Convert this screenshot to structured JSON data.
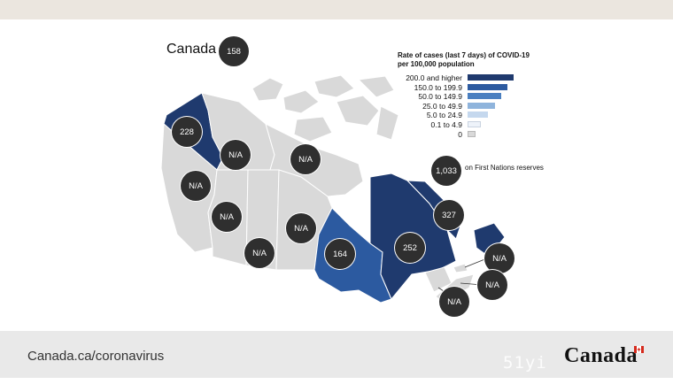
{
  "header": {
    "bar": ""
  },
  "map": {
    "title": "Canada",
    "national_value": "158",
    "first_nations_value": "1,033",
    "first_nations_label": "on First Nations reserves",
    "regions": [
      {
        "name": "Yukon",
        "value": "228",
        "fill": "#1f3a6e"
      },
      {
        "name": "Northwest Territories",
        "value": "N/A",
        "fill": "#d9d9d9"
      },
      {
        "name": "Nunavut",
        "value": "N/A",
        "fill": "#d9d9d9"
      },
      {
        "name": "British Columbia",
        "value": "N/A",
        "fill": "#d9d9d9"
      },
      {
        "name": "Alberta",
        "value": "N/A",
        "fill": "#d9d9d9"
      },
      {
        "name": "Saskatchewan",
        "value": "N/A",
        "fill": "#d9d9d9"
      },
      {
        "name": "Manitoba",
        "value": "N/A",
        "fill": "#d9d9d9"
      },
      {
        "name": "Ontario",
        "value": "164",
        "fill": "#2c5aa0"
      },
      {
        "name": "Quebec",
        "value": "252",
        "fill": "#1f3a6e"
      },
      {
        "name": "Newfoundland and Labrador",
        "value": "327",
        "fill": "#1f3a6e"
      },
      {
        "name": "New Brunswick",
        "value": "N/A",
        "fill": "#d9d9d9"
      },
      {
        "name": "Prince Edward Island",
        "value": "N/A",
        "fill": "#d9d9d9"
      },
      {
        "name": "Nova Scotia",
        "value": "N/A",
        "fill": "#d9d9d9"
      }
    ]
  },
  "legend": {
    "title": "Rate of cases (last 7 days) of COVID-19 per 100,000 population",
    "items": [
      {
        "label": "200.0 and higher",
        "color": "#1f3a6e"
      },
      {
        "label": "150.0 to 199.9",
        "color": "#2c5aa0"
      },
      {
        "label": "50.0 to 149.9",
        "color": "#4a7fc0"
      },
      {
        "label": "25.0 to 49.9",
        "color": "#8fb4dc"
      },
      {
        "label": "5.0 to 24.9",
        "color": "#c5d8ee"
      },
      {
        "label": "0.1 to 4.9",
        "color": "#eef3fa"
      },
      {
        "label": "0",
        "color": "#d9d9d9"
      }
    ]
  },
  "footer": {
    "url": "Canada.ca/coronavirus",
    "wordmark": "Canada",
    "watermark": "51yi m........com"
  },
  "colors": {
    "bubble": "#2f2f2f",
    "no_data": "#d9d9d9"
  }
}
